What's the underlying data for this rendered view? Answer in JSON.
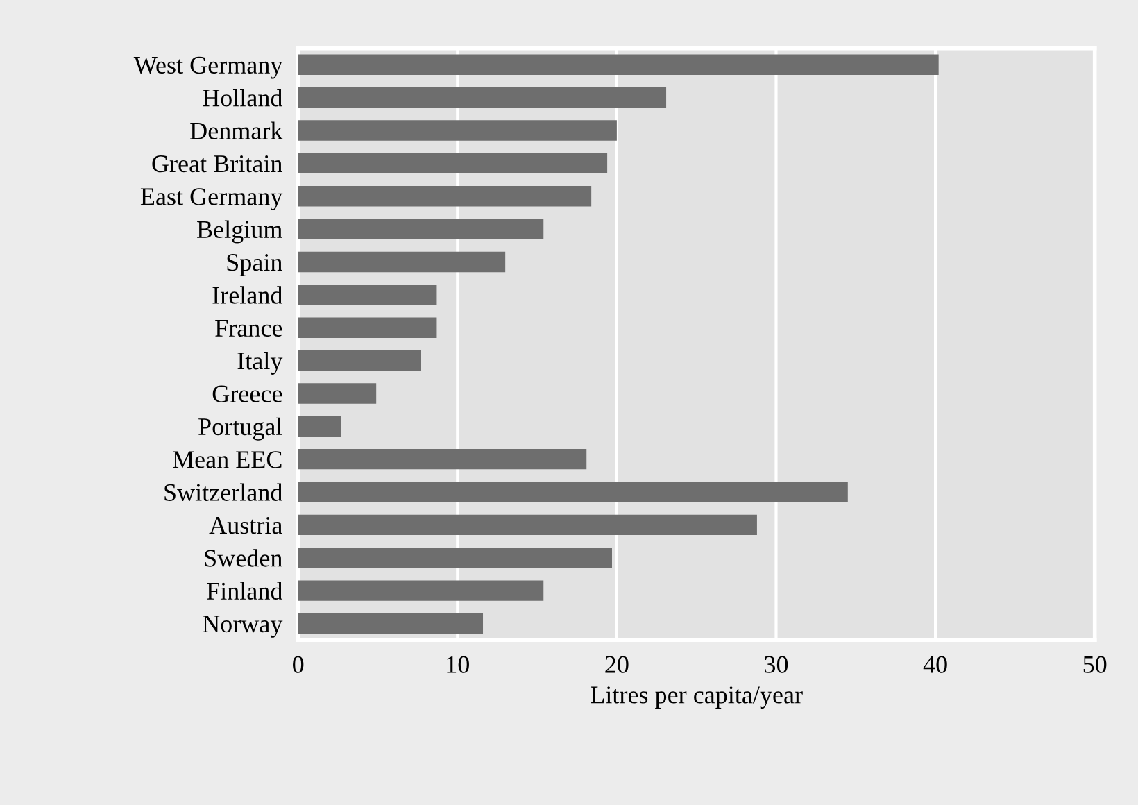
{
  "chart_data": {
    "type": "bar",
    "orientation": "horizontal",
    "categories": [
      "West Germany",
      "Holland",
      "Denmark",
      "Great Britain",
      "East Germany",
      "Belgium",
      "Spain",
      "Ireland",
      "France",
      "Italy",
      "Greece",
      "Portugal",
      "Mean EEC",
      "Switzerland",
      "Austria",
      "Sweden",
      "Finland",
      "Norway"
    ],
    "values": [
      40.2,
      23.1,
      20.0,
      19.4,
      18.4,
      15.4,
      13.0,
      8.7,
      8.7,
      7.7,
      4.9,
      2.7,
      18.1,
      34.5,
      28.8,
      19.7,
      15.4,
      11.6
    ],
    "color": "#6e6e6e",
    "xlabel": "Litres per capita/year",
    "xlim": [
      0,
      50
    ],
    "xticks": [
      0,
      10,
      20,
      30,
      40,
      50
    ],
    "grid": "x"
  }
}
